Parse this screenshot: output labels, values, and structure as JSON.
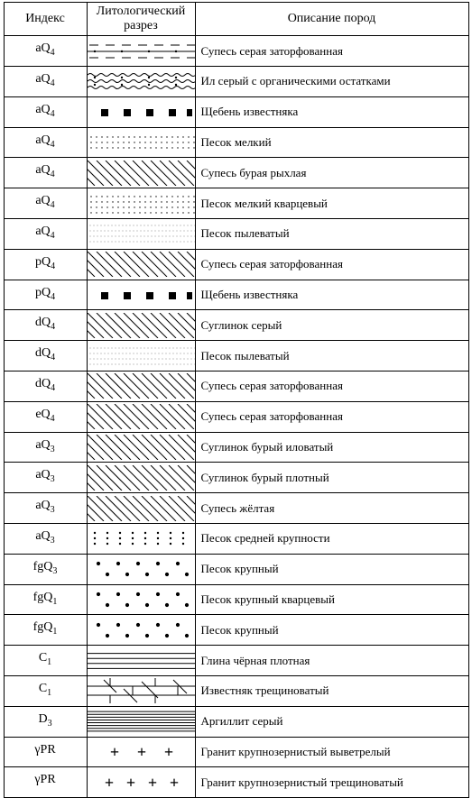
{
  "headers": {
    "index": "Индекс",
    "lith": "Литологический\nразрез",
    "desc": "Описание пород"
  },
  "rows": [
    {
      "idx_base": "aQ",
      "idx_sub": "4",
      "pattern": "supes_dash_dots",
      "desc": "Супесь серая заторфованная"
    },
    {
      "idx_base": "aQ",
      "idx_sub": "4",
      "pattern": "silt_wavy",
      "desc": "Ил серый с органическими остатками"
    },
    {
      "idx_base": "aQ",
      "idx_sub": "4",
      "pattern": "rubble",
      "desc": "Щебень известняка"
    },
    {
      "idx_base": "aQ",
      "idx_sub": "4",
      "pattern": "sand_fine",
      "desc": "Песок мелкий"
    },
    {
      "idx_base": "aQ",
      "idx_sub": "4",
      "pattern": "supes_hatch",
      "desc": "Супесь бурая рыхлая"
    },
    {
      "idx_base": "aQ",
      "idx_sub": "4",
      "pattern": "sand_quartz",
      "desc": "Песок мелкий кварцевый"
    },
    {
      "idx_base": "aQ",
      "idx_sub": "4",
      "pattern": "sand_dusty",
      "desc": "Песок пылеватый"
    },
    {
      "idx_base": "pQ",
      "idx_sub": "4",
      "pattern": "supes_hatch",
      "desc": "Супесь серая заторфованная"
    },
    {
      "idx_base": "pQ",
      "idx_sub": "4",
      "pattern": "rubble",
      "desc": "Щебень известняка"
    },
    {
      "idx_base": "dQ",
      "idx_sub": "4",
      "pattern": "loam_hatch",
      "desc": "Суглинок серый"
    },
    {
      "idx_base": "dQ",
      "idx_sub": "4",
      "pattern": "sand_dusty",
      "desc": "Песок пылеватый"
    },
    {
      "idx_base": "dQ",
      "idx_sub": "4",
      "pattern": "supes_hatch",
      "desc": "Супесь серая заторфованная"
    },
    {
      "idx_base": "eQ",
      "idx_sub": "4",
      "pattern": "supes_hatch",
      "desc": "Супесь серая заторфованная"
    },
    {
      "idx_base": "aQ",
      "idx_sub": "3",
      "pattern": "loam_hatch",
      "desc": "Суглинок бурый иловатый"
    },
    {
      "idx_base": "aQ",
      "idx_sub": "3",
      "pattern": "loam_hatch",
      "desc": "Суглинок бурый плотный"
    },
    {
      "idx_base": "aQ",
      "idx_sub": "3",
      "pattern": "supes_hatch",
      "desc": "Супесь жёлтая"
    },
    {
      "idx_base": "aQ",
      "idx_sub": "3",
      "pattern": "sand_med",
      "desc": "Песок средней крупности"
    },
    {
      "idx_base": "fgQ",
      "idx_sub": "3",
      "pattern": "sand_coarse",
      "desc": "Песок крупный"
    },
    {
      "idx_base": "fgQ",
      "idx_sub": "1",
      "pattern": "sand_coarse",
      "desc": "Песок крупный кварцевый"
    },
    {
      "idx_base": "fgQ",
      "idx_sub": "1",
      "pattern": "sand_coarse",
      "desc": "Песок крупный"
    },
    {
      "idx_base": "C",
      "idx_sub": "1",
      "pattern": "clay_lines",
      "desc": "Глина чёрная плотная"
    },
    {
      "idx_base": "C",
      "idx_sub": "1",
      "pattern": "limestone_frac",
      "desc": "Известняк трещиноватый"
    },
    {
      "idx_base": "D",
      "idx_sub": "3",
      "pattern": "argillite",
      "desc": "Аргиллит серый"
    },
    {
      "idx_base": "γPR",
      "idx_sub": "",
      "pattern": "granite_sparse",
      "desc": "Гранит крупнозернистый выветрелый"
    },
    {
      "idx_base": "γPR",
      "idx_sub": "",
      "pattern": "granite_dense",
      "desc": "Гранит крупнозернистый трещиноватый"
    }
  ],
  "colors": {
    "stroke": "#000000",
    "bg": "#ffffff"
  }
}
